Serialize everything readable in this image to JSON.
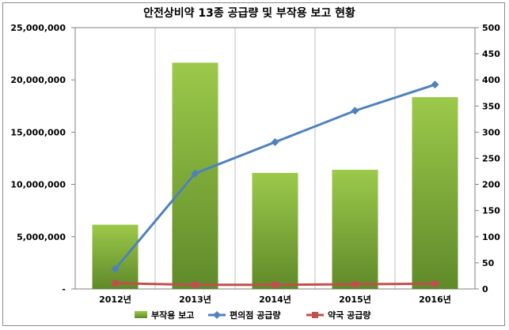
{
  "chart_data": {
    "type": "bar",
    "title": "안전상비약 13종 공급량 및 부작용 보고 현황",
    "categories": [
      "2012년",
      "2013년",
      "2014년",
      "2015년",
      "2016년"
    ],
    "series": [
      {
        "name": "부작용 보고",
        "type": "bar",
        "axis": "right",
        "values": [
          123,
          433,
          222,
          228,
          367
        ],
        "color": "#7fab3a"
      },
      {
        "name": "편의점 공급량",
        "type": "line",
        "axis": "left",
        "values": [
          1900000,
          11050000,
          14050000,
          17050000,
          19550000
        ],
        "color": "#4f81bd",
        "marker": "diamond"
      },
      {
        "name": "약국 공급량",
        "type": "line",
        "axis": "left",
        "values": [
          550000,
          400000,
          400000,
          450000,
          500000
        ],
        "color": "#c0504d",
        "marker": "square"
      }
    ],
    "y_left": {
      "min": 0,
      "max": 25000000,
      "step": 5000000,
      "tick_labels": [
        "-",
        "5,000,000",
        "10,000,000",
        "15,000,000",
        "20,000,000",
        "25,000,000"
      ]
    },
    "y_right": {
      "min": 0,
      "max": 500,
      "step": 50,
      "tick_labels": [
        "0",
        "50",
        "100",
        "150",
        "200",
        "250",
        "300",
        "350",
        "400",
        "450",
        "500"
      ]
    },
    "grid": "vertical",
    "legend": "bottom"
  }
}
